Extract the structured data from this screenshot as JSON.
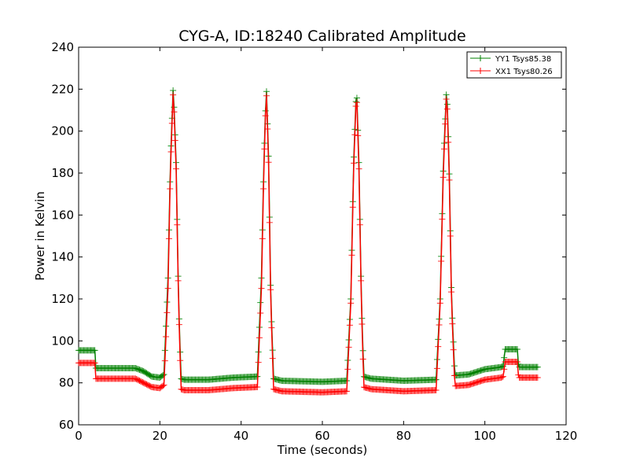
{
  "chart_data": {
    "type": "line",
    "title": "CYG-A, ID:18240 Calibrated Amplitude",
    "xlabel": "Time (seconds)",
    "ylabel": "Power in Kelvin",
    "xlim": [
      0,
      120
    ],
    "ylim": [
      60,
      240
    ],
    "xticks": [
      "0",
      "20",
      "40",
      "60",
      "80",
      "100",
      "120"
    ],
    "yticks": [
      "60",
      "80",
      "100",
      "120",
      "140",
      "160",
      "180",
      "200",
      "220",
      "240"
    ],
    "grid": false,
    "legend_position": "top-right",
    "marker": "+",
    "series": [
      {
        "name": "YY1 Tsys85.38",
        "color": "#008000",
        "keypoints": [
          [
            0,
            95.5
          ],
          [
            4,
            95.5
          ],
          [
            4.2,
            87
          ],
          [
            8,
            87
          ],
          [
            14,
            87
          ],
          [
            16,
            85.5
          ],
          [
            18,
            83
          ],
          [
            20,
            82.5
          ],
          [
            21,
            84
          ],
          [
            22,
            130
          ],
          [
            22.6,
            185
          ],
          [
            23.3,
            222
          ],
          [
            24,
            185
          ],
          [
            24.6,
            120
          ],
          [
            25.2,
            82
          ],
          [
            26,
            81.5
          ],
          [
            32,
            81.5
          ],
          [
            38,
            82.5
          ],
          [
            44,
            83
          ],
          [
            45,
            130
          ],
          [
            45.6,
            185
          ],
          [
            46.2,
            222
          ],
          [
            46.8,
            185
          ],
          [
            47.3,
            120
          ],
          [
            48,
            82
          ],
          [
            50,
            81
          ],
          [
            60,
            80.5
          ],
          [
            66,
            81
          ],
          [
            67,
            120
          ],
          [
            67.7,
            185
          ],
          [
            68.4,
            222
          ],
          [
            69,
            185
          ],
          [
            69.6,
            120
          ],
          [
            70.2,
            83
          ],
          [
            72,
            82
          ],
          [
            80,
            81
          ],
          [
            88,
            81.5
          ],
          [
            89,
            120
          ],
          [
            89.8,
            185
          ],
          [
            90.6,
            222
          ],
          [
            91.2,
            185
          ],
          [
            91.8,
            120
          ],
          [
            92.6,
            83.5
          ],
          [
            96,
            84
          ],
          [
            100,
            86.5
          ],
          [
            104,
            87.5
          ],
          [
            104.5,
            88
          ],
          [
            105,
            96
          ],
          [
            108,
            96
          ],
          [
            108.3,
            87.5
          ],
          [
            113,
            87.5
          ]
        ]
      },
      {
        "name": "XX1 Tsys80.26",
        "color": "#ff0000",
        "keypoints": [
          [
            0,
            89.5
          ],
          [
            4,
            89.5
          ],
          [
            4.2,
            82
          ],
          [
            8,
            82
          ],
          [
            14,
            82
          ],
          [
            16,
            80
          ],
          [
            18,
            78
          ],
          [
            20,
            77.5
          ],
          [
            21,
            79
          ],
          [
            22,
            125
          ],
          [
            22.6,
            182
          ],
          [
            23.3,
            220
          ],
          [
            24,
            182
          ],
          [
            24.6,
            118
          ],
          [
            25.2,
            77
          ],
          [
            26,
            76.5
          ],
          [
            32,
            76.5
          ],
          [
            38,
            77.5
          ],
          [
            44,
            78
          ],
          [
            45,
            125
          ],
          [
            45.6,
            182
          ],
          [
            46.2,
            220
          ],
          [
            46.8,
            182
          ],
          [
            47.3,
            118
          ],
          [
            48,
            77
          ],
          [
            50,
            76
          ],
          [
            60,
            75.5
          ],
          [
            66,
            76
          ],
          [
            67,
            118
          ],
          [
            67.7,
            182
          ],
          [
            68.4,
            220
          ],
          [
            69,
            182
          ],
          [
            69.6,
            118
          ],
          [
            70.2,
            78
          ],
          [
            72,
            77
          ],
          [
            80,
            76
          ],
          [
            88,
            76.5
          ],
          [
            89,
            118
          ],
          [
            89.8,
            182
          ],
          [
            90.6,
            220
          ],
          [
            91.2,
            182
          ],
          [
            91.8,
            118
          ],
          [
            92.6,
            78.5
          ],
          [
            96,
            79
          ],
          [
            100,
            81.5
          ],
          [
            104,
            82.5
          ],
          [
            104.5,
            83
          ],
          [
            105,
            90
          ],
          [
            108,
            90
          ],
          [
            108.3,
            82.5
          ],
          [
            113,
            82.5
          ]
        ]
      }
    ]
  }
}
